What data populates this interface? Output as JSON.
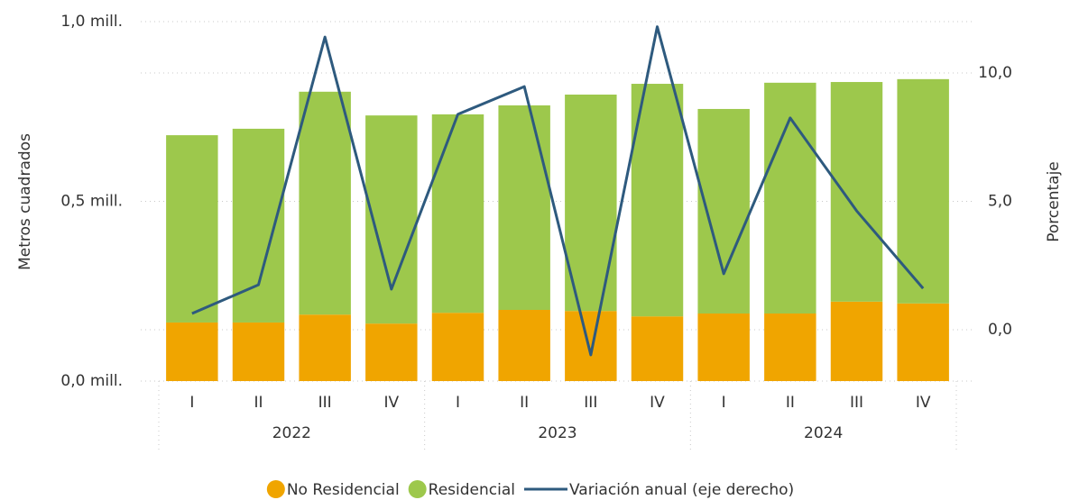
{
  "chart_data": {
    "type": "bar",
    "stacked": true,
    "categories": [
      "I",
      "II",
      "III",
      "IV",
      "I",
      "II",
      "III",
      "IV",
      "I",
      "II",
      "III",
      "IV"
    ],
    "groups": [
      {
        "label": "2022",
        "size": 4
      },
      {
        "label": "2023",
        "size": 4
      },
      {
        "label": "2024",
        "size": 4
      }
    ],
    "ylabel": "Metros cuadrados",
    "y2label": "Porcentaje",
    "ylim": [
      0,
      1.0
    ],
    "yticks": [
      {
        "value": 0,
        "label": "0,0 mill."
      },
      {
        "value": 0.5,
        "label": "0,5 mill."
      },
      {
        "value": 1.0,
        "label": "1,0 mill."
      }
    ],
    "y2lim": [
      -2,
      12
    ],
    "y2ticks": [
      {
        "value": 0,
        "label": "0,0"
      },
      {
        "value": 5,
        "label": "5,0"
      },
      {
        "value": 10,
        "label": "10,0"
      }
    ],
    "grid": true,
    "legend": "bottom",
    "series": [
      {
        "name": "No Residencial",
        "type": "bar",
        "color": "#f0a500",
        "values": [
          0.163,
          0.163,
          0.185,
          0.16,
          0.19,
          0.198,
          0.195,
          0.18,
          0.188,
          0.188,
          0.221,
          0.216
        ]
      },
      {
        "name": "Residencial",
        "type": "bar",
        "color": "#9dc84c",
        "values": [
          0.521,
          0.539,
          0.62,
          0.579,
          0.552,
          0.569,
          0.602,
          0.647,
          0.569,
          0.642,
          0.611,
          0.624
        ]
      },
      {
        "name": "Variación anual (eje derecho)",
        "type": "line",
        "axis": "y2",
        "color": "#2e5a7e",
        "values": [
          0.63,
          1.75,
          11.4,
          1.58,
          8.39,
          9.47,
          -0.98,
          11.8,
          2.18,
          8.25,
          4.63,
          1.61
        ]
      }
    ]
  }
}
